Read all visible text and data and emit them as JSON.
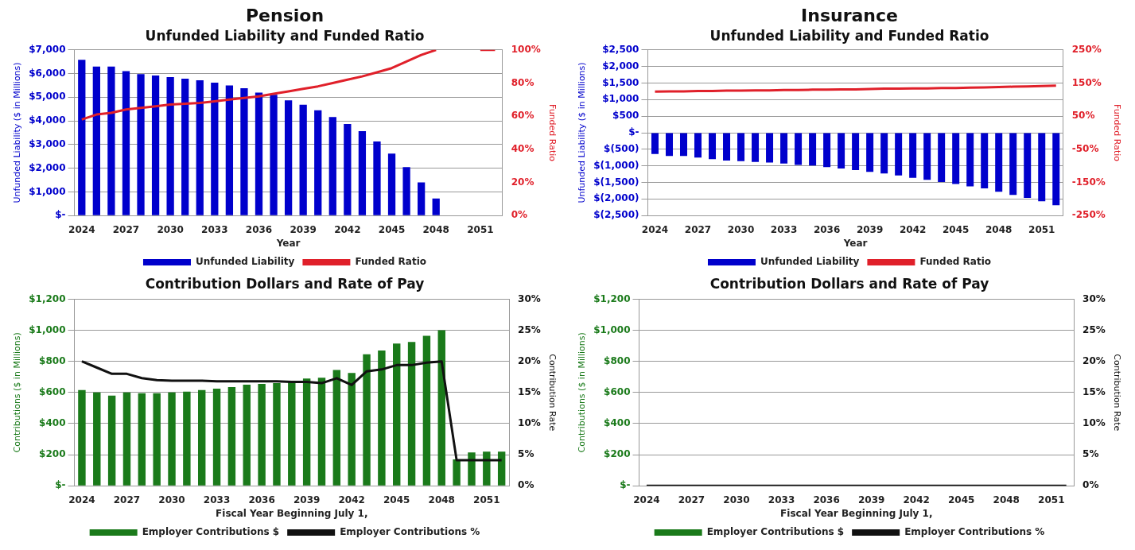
{
  "chart_data": [
    {
      "type": "bar",
      "title": "Pension",
      "subtitle": "Unfunded Liability and Funded Ratio",
      "xlabel": "Year",
      "ylabel": "Unfunded Liability ($ in Millions)",
      "y2label": "Funded Ratio",
      "categories": [
        "2024",
        null,
        null,
        "2027",
        null,
        null,
        "2030",
        null,
        null,
        "2033",
        null,
        null,
        "2036",
        null,
        null,
        "2039",
        null,
        null,
        "2042",
        null,
        null,
        "2045",
        null,
        null,
        "2048",
        null,
        null,
        "2051",
        null
      ],
      "series": [
        {
          "name": "Unfunded Liability",
          "color": "#0000cc",
          "values": [
            6580,
            6300,
            6300,
            6100,
            5980,
            5920,
            5850,
            5780,
            5720,
            5620,
            5500,
            5380,
            5200,
            5100,
            4870,
            4680,
            4450,
            4160,
            3870,
            3570,
            3130,
            2620,
            2050,
            1400,
            720,
            null,
            null,
            null,
            null
          ]
        },
        {
          "name": "Funded Ratio",
          "type": "line",
          "axis": "y2",
          "color": "#e0202a",
          "values": [
            58,
            61,
            62,
            64,
            65,
            66,
            67,
            67.5,
            68,
            69,
            70,
            71,
            72,
            73.5,
            75,
            76.5,
            78,
            80,
            82,
            84,
            86.5,
            89,
            93,
            97,
            100,
            null,
            null,
            100,
            100
          ]
        }
      ],
      "ylim": [
        0,
        7000
      ],
      "yticks": [
        {
          "value": 0,
          "label": "$-"
        },
        {
          "value": 1000,
          "label": "$1,000"
        },
        {
          "value": 2000,
          "label": "$2,000"
        },
        {
          "value": 3000,
          "label": "$3,000"
        },
        {
          "value": 4000,
          "label": "$4,000"
        },
        {
          "value": 5000,
          "label": "$5,000"
        },
        {
          "value": 6000,
          "label": "$6,000"
        },
        {
          "value": 7000,
          "label": "$7,000"
        }
      ],
      "y2lim": [
        0,
        100
      ],
      "y2ticks": [
        {
          "value": 0,
          "label": "0%"
        },
        {
          "value": 20,
          "label": "20%"
        },
        {
          "value": 40,
          "label": "40%"
        },
        {
          "value": 60,
          "label": "60%"
        },
        {
          "value": 80,
          "label": "80%"
        },
        {
          "value": 100,
          "label": "100%"
        }
      ],
      "grid": "y",
      "legend": "bottom"
    },
    {
      "type": "bar",
      "title": "Insurance",
      "subtitle": "Unfunded Liability and Funded Ratio",
      "xlabel": "Year",
      "ylabel": "Unfunded Liability ($ in Millions)",
      "y2label": "Funded Ratio",
      "categories": [
        "2024",
        null,
        null,
        "2027",
        null,
        null,
        "2030",
        null,
        null,
        "2033",
        null,
        null,
        "2036",
        null,
        null,
        "2039",
        null,
        null,
        "2042",
        null,
        null,
        "2045",
        null,
        null,
        "2048",
        null,
        null,
        "2051",
        null
      ],
      "series": [
        {
          "name": "Unfunded Liability",
          "color": "#0000cc",
          "values": [
            -640,
            -700,
            -700,
            -750,
            -800,
            -840,
            -860,
            -880,
            -900,
            -930,
            -970,
            -990,
            -1040,
            -1080,
            -1130,
            -1180,
            -1230,
            -1290,
            -1360,
            -1420,
            -1490,
            -1550,
            -1620,
            -1680,
            -1780,
            -1880,
            -1970,
            -2070,
            -2190
          ]
        },
        {
          "name": "Funded Ratio",
          "type": "line",
          "axis": "y2",
          "color": "#e0202a",
          "values": [
            124,
            125,
            125,
            126,
            126,
            127,
            127,
            128,
            128,
            129,
            129,
            130,
            130,
            131,
            131,
            132,
            133,
            133,
            134,
            134,
            135,
            135,
            136,
            137,
            138,
            139,
            140,
            141,
            142
          ]
        }
      ],
      "ylim": [
        -2500,
        2500
      ],
      "yticks": [
        {
          "value": -2500,
          "label": "$(2,500)"
        },
        {
          "value": -2000,
          "label": "$(2,000)"
        },
        {
          "value": -1500,
          "label": "$(1,500)"
        },
        {
          "value": -1000,
          "label": "$(1,000)"
        },
        {
          "value": -500,
          "label": "$(500)"
        },
        {
          "value": 0,
          "label": "$-"
        },
        {
          "value": 500,
          "label": "$500"
        },
        {
          "value": 1000,
          "label": "$1,000"
        },
        {
          "value": 1500,
          "label": "$1,500"
        },
        {
          "value": 2000,
          "label": "$2,000"
        },
        {
          "value": 2500,
          "label": "$2,500"
        }
      ],
      "y2lim": [
        -250,
        250
      ],
      "y2ticks": [
        {
          "value": -250,
          "label": "-250%"
        },
        {
          "value": -150,
          "label": "-150%"
        },
        {
          "value": -50,
          "label": "-50%"
        },
        {
          "value": 50,
          "label": "50%"
        },
        {
          "value": 150,
          "label": "150%"
        },
        {
          "value": 250,
          "label": "250%"
        }
      ],
      "grid": "y",
      "legend": "bottom"
    },
    {
      "type": "bar",
      "title": "Contribution Dollars and Rate of Pay",
      "xlabel": "Fiscal Year Beginning July 1,",
      "ylabel": "Contributions ($ in Millions)",
      "y2label": "Contribution Rate",
      "categories": [
        "2024",
        null,
        null,
        "2027",
        null,
        null,
        "2030",
        null,
        null,
        "2033",
        null,
        null,
        "2036",
        null,
        null,
        "2039",
        null,
        null,
        "2042",
        null,
        null,
        "2045",
        null,
        null,
        "2048",
        null,
        null,
        "2051",
        null
      ],
      "series": [
        {
          "name": "Employer Contributions $",
          "color": "#1a7a1a",
          "values": [
            615,
            600,
            580,
            600,
            595,
            595,
            600,
            605,
            615,
            625,
            635,
            650,
            655,
            660,
            675,
            690,
            695,
            745,
            725,
            845,
            870,
            915,
            925,
            965,
            1000,
            170,
            215,
            220,
            220
          ]
        },
        {
          "name": "Employer Contributions %",
          "type": "line",
          "axis": "y2",
          "color": "#111111",
          "values": [
            20,
            19,
            18,
            18,
            17.3,
            17,
            16.9,
            16.9,
            16.9,
            16.8,
            16.8,
            16.8,
            16.8,
            16.8,
            16.7,
            16.7,
            16.5,
            17.3,
            16.2,
            18.4,
            18.7,
            19.4,
            19.4,
            19.8,
            20,
            4.1,
            4.1,
            4.1,
            4.1
          ]
        }
      ],
      "ylim": [
        0,
        1200
      ],
      "yticks": [
        {
          "value": 0,
          "label": "$-"
        },
        {
          "value": 200,
          "label": "$200"
        },
        {
          "value": 400,
          "label": "$400"
        },
        {
          "value": 600,
          "label": "$600"
        },
        {
          "value": 800,
          "label": "$800"
        },
        {
          "value": 1000,
          "label": "$1,000"
        },
        {
          "value": 1200,
          "label": "$1,200"
        }
      ],
      "y2lim": [
        0,
        30
      ],
      "y2ticks": [
        {
          "value": 0,
          "label": "0%"
        },
        {
          "value": 5,
          "label": "5%"
        },
        {
          "value": 10,
          "label": "10%"
        },
        {
          "value": 15,
          "label": "15%"
        },
        {
          "value": 20,
          "label": "20%"
        },
        {
          "value": 25,
          "label": "25%"
        },
        {
          "value": 30,
          "label": "30%"
        }
      ],
      "grid": "y",
      "legend": "bottom"
    },
    {
      "type": "bar",
      "title": "Contribution Dollars and Rate of Pay",
      "xlabel": "Fiscal Year Beginning July 1,",
      "ylabel": "Contributions ($ in Millions)",
      "y2label": "Contribution Rate",
      "categories": [
        "2024",
        null,
        null,
        "2027",
        null,
        null,
        "2030",
        null,
        null,
        "2033",
        null,
        null,
        "2036",
        null,
        null,
        "2039",
        null,
        null,
        "2042",
        null,
        null,
        "2045",
        null,
        null,
        "2048",
        null,
        null,
        "2051",
        null
      ],
      "series": [
        {
          "name": "Employer Contributions $",
          "color": "#1a7a1a",
          "values": [
            0,
            0,
            0,
            0,
            0,
            0,
            0,
            0,
            0,
            0,
            0,
            0,
            0,
            0,
            0,
            0,
            0,
            0,
            0,
            0,
            0,
            0,
            0,
            0,
            0,
            0,
            0,
            0,
            0
          ]
        },
        {
          "name": "Employer Contributions %",
          "type": "line",
          "axis": "y2",
          "color": "#111111",
          "values": [
            0,
            0,
            0,
            0,
            0,
            0,
            0,
            0,
            0,
            0,
            0,
            0,
            0,
            0,
            0,
            0,
            0,
            0,
            0,
            0,
            0,
            0,
            0,
            0,
            0,
            0,
            0,
            0,
            0
          ]
        }
      ],
      "ylim": [
        0,
        1200
      ],
      "yticks": [
        {
          "value": 0,
          "label": "$-"
        },
        {
          "value": 200,
          "label": "$200"
        },
        {
          "value": 400,
          "label": "$400"
        },
        {
          "value": 600,
          "label": "$600"
        },
        {
          "value": 800,
          "label": "$800"
        },
        {
          "value": 1000,
          "label": "$1,000"
        },
        {
          "value": 1200,
          "label": "$1,200"
        }
      ],
      "y2lim": [
        0,
        30
      ],
      "y2ticks": [
        {
          "value": 0,
          "label": "0%"
        },
        {
          "value": 5,
          "label": "5%"
        },
        {
          "value": 10,
          "label": "10%"
        },
        {
          "value": 15,
          "label": "15%"
        },
        {
          "value": 20,
          "label": "20%"
        },
        {
          "value": 25,
          "label": "25%"
        },
        {
          "value": 30,
          "label": "30%"
        }
      ],
      "grid": "y",
      "legend": "bottom"
    }
  ]
}
